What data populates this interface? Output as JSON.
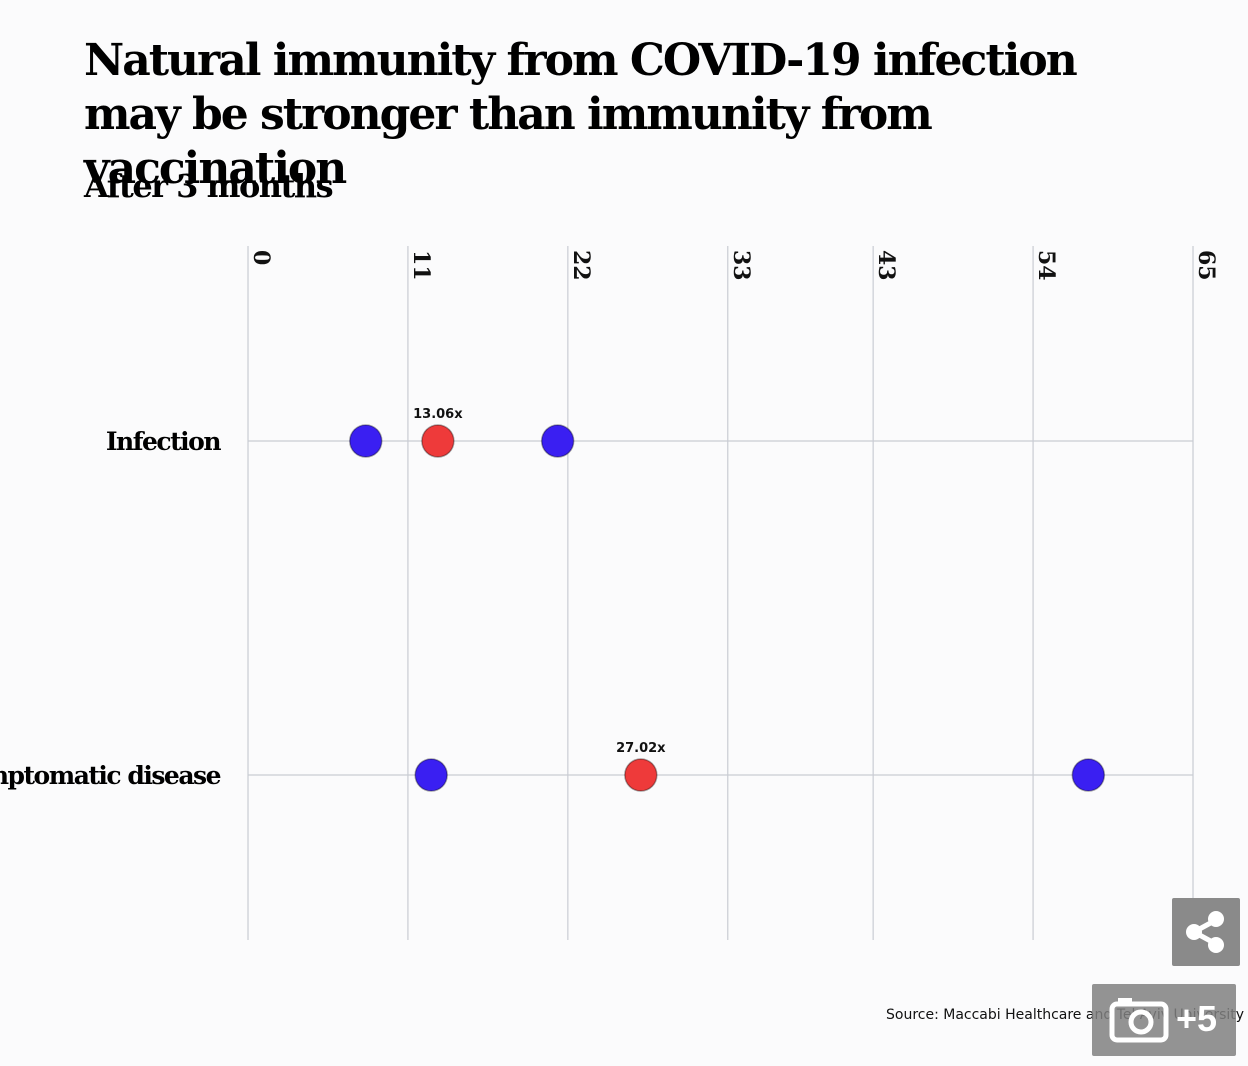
{
  "title": "Natural immunity from COVID-19 infection may be stronger than immunity from vaccination",
  "subtitle": "After 3 months",
  "source": "Source: Maccabi Healthcare and Tel Aviv University",
  "gallery_count": "+5",
  "colors": {
    "low_high": "#3a1ff2",
    "estimate": "#ee3a3a",
    "grid": "#c9ccd3"
  },
  "icons": {
    "share": "share-icon",
    "gallery": "camera-icon"
  },
  "chart_data": {
    "type": "scatter",
    "title": "",
    "xlabel": "",
    "ylabel": "",
    "xlim": [
      0,
      65
    ],
    "xticks": [
      0,
      11,
      22,
      33,
      43,
      54,
      65
    ],
    "categories": [
      "Infection",
      "Symptomatic disease"
    ],
    "series": [
      {
        "name": "",
        "role": "lower",
        "color": "#3a1ff2",
        "values": [
          8.1,
          12.6
        ]
      },
      {
        "name": "",
        "role": "estimate",
        "color": "#ee3a3a",
        "values": [
          13.06,
          27.02
        ],
        "labels": [
          "13.06x",
          "27.02x"
        ]
      },
      {
        "name": "",
        "role": "upper",
        "color": "#3a1ff2",
        "values": [
          21.3,
          57.8
        ]
      }
    ],
    "grid": true,
    "legend": "none"
  }
}
